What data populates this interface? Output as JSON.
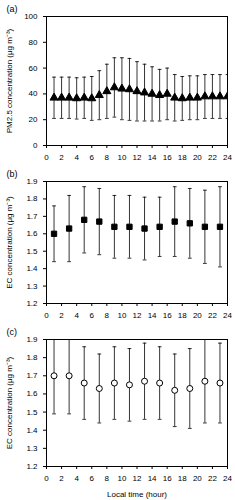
{
  "chart_data": [
    {
      "type": "scatter",
      "title": "(a)",
      "ylabel": "PM2.5 concentration (μg m⁻³)",
      "x": [
        1,
        2,
        3,
        4,
        5,
        6,
        7,
        8,
        9,
        10,
        11,
        12,
        13,
        14,
        15,
        16,
        17,
        18,
        19,
        20,
        21,
        22,
        23,
        24
      ],
      "values": [
        37,
        37,
        37,
        36.5,
        37,
        36.5,
        39,
        42,
        45,
        44,
        43.5,
        42,
        41,
        40,
        39,
        40,
        37,
        36.5,
        37,
        37,
        38,
        38,
        38,
        38
      ],
      "errors": [
        16,
        16,
        16,
        16,
        16,
        17,
        19,
        21,
        23,
        24,
        24,
        23,
        22,
        21,
        20,
        20,
        18,
        17,
        17,
        17,
        17,
        17,
        17,
        17
      ],
      "xlim": [
        0,
        24
      ],
      "xticks": [
        0,
        2,
        4,
        6,
        8,
        10,
        12,
        14,
        16,
        18,
        20,
        22,
        24
      ],
      "ylim": [
        0,
        100
      ],
      "yticks": [
        0,
        20,
        40,
        60,
        80,
        100
      ],
      "color": "#000000",
      "marker": "triangle",
      "grid": false
    },
    {
      "type": "scatter",
      "title": "(b)",
      "ylabel": "EC concentration (μg m⁻³)",
      "x": [
        1,
        3,
        5,
        7,
        9,
        11,
        13,
        15,
        17,
        19,
        21,
        23
      ],
      "values": [
        1.6,
        1.63,
        1.68,
        1.67,
        1.64,
        1.64,
        1.63,
        1.64,
        1.67,
        1.66,
        1.64,
        1.64
      ],
      "errors": [
        0.16,
        0.19,
        0.19,
        0.19,
        0.18,
        0.18,
        0.18,
        0.17,
        0.2,
        0.2,
        0.21,
        0.23
      ],
      "xlim": [
        0,
        24
      ],
      "xticks": [
        0,
        2,
        4,
        6,
        8,
        10,
        12,
        14,
        16,
        18,
        20,
        22,
        24
      ],
      "ylim": [
        1.2,
        1.9
      ],
      "yticks": [
        1.2,
        1.3,
        1.4,
        1.5,
        1.6,
        1.7,
        1.8,
        1.9
      ],
      "color": "#000000",
      "marker": "square",
      "grid": false
    },
    {
      "type": "scatter",
      "title": "(c)",
      "ylabel": "EC concentration (μg m⁻³)",
      "xlabel": "Local time (hour)",
      "x": [
        1,
        3,
        5,
        7,
        9,
        11,
        13,
        15,
        17,
        19,
        21,
        23
      ],
      "values": [
        1.7,
        1.7,
        1.66,
        1.63,
        1.66,
        1.65,
        1.67,
        1.66,
        1.62,
        1.63,
        1.67,
        1.66
      ],
      "errors": [
        0.21,
        0.21,
        0.2,
        0.19,
        0.2,
        0.2,
        0.21,
        0.2,
        0.2,
        0.22,
        0.23,
        0.22
      ],
      "xlim": [
        0,
        24
      ],
      "xticks": [
        0,
        2,
        4,
        6,
        8,
        10,
        12,
        14,
        16,
        18,
        20,
        22,
        24
      ],
      "ylim": [
        1.2,
        1.9
      ],
      "yticks": [
        1.2,
        1.3,
        1.4,
        1.5,
        1.6,
        1.7,
        1.8,
        1.9
      ],
      "color": "#000000",
      "marker": "hollow-circle",
      "grid": false
    }
  ]
}
